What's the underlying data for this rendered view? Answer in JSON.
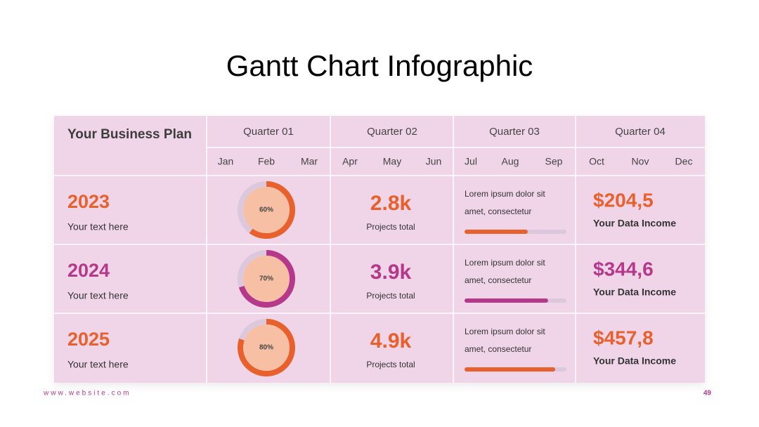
{
  "title": "Gantt Chart Infographic",
  "table": {
    "corner": "Your Business Plan",
    "quarters": [
      "Quarter 01",
      "Quarter 02",
      "Quarter 03",
      "Quarter 04"
    ],
    "months": [
      "Jan",
      "Feb",
      "Mar",
      "Apr",
      "May",
      "Jun",
      "Jul",
      "Aug",
      "Sep",
      "Oct",
      "Nov",
      "Dec"
    ],
    "rows": [
      {
        "year": "2023",
        "text": "Your text here",
        "color": "#e8602c",
        "donut": {
          "value": 60,
          "label": "60%"
        },
        "stat": "2.8k",
        "stat_label": "Projects total",
        "note": [
          "Lorem ipsum dolor sit",
          "amet, consectetur"
        ],
        "progress": 62,
        "income": "$204,5",
        "income_label": "Your Data Income"
      },
      {
        "year": "2024",
        "text": "Your text here",
        "color": "#b5388a",
        "donut": {
          "value": 70,
          "label": "70%"
        },
        "stat": "3.9k",
        "stat_label": "Projects total",
        "note": [
          "Lorem ipsum dolor sit",
          "amet, consectetur"
        ],
        "progress": 82,
        "income": "$344,6",
        "income_label": "Your Data Income"
      },
      {
        "year": "2025",
        "text": "Your text here",
        "color": "#e8602c",
        "donut": {
          "value": 80,
          "label": "80%"
        },
        "stat": "4.9k",
        "stat_label": "Projects total",
        "note": [
          "Lorem ipsum dolor sit",
          "amet, consectetur"
        ],
        "progress": 89,
        "income": "$457,8",
        "income_label": "Your Data Income"
      }
    ]
  },
  "footer": {
    "website": "www.website.com",
    "page": 49
  }
}
